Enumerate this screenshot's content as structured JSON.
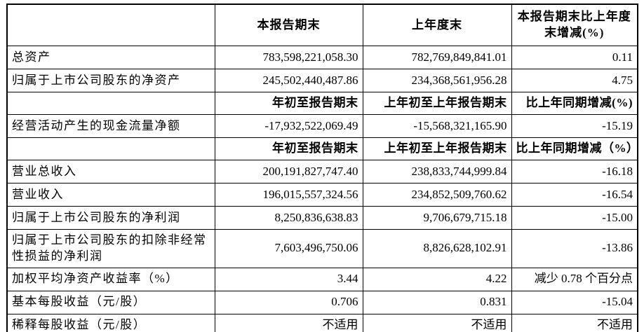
{
  "table": {
    "top_header": {
      "label_col": "",
      "current_period_end": "本报告期末",
      "prior_year_end": "上年度末",
      "change_col_line1": "本报告期末比上年度",
      "change_col_line2": "末增减(%)"
    },
    "rows": [
      {
        "kind": "data",
        "label": "总资产",
        "current": "783,598,221,058.30",
        "prior": "782,769,849,841.01",
        "change": "0.11"
      },
      {
        "kind": "data",
        "label": "归属于上市公司股东的净资产",
        "current": "245,502,440,487.86",
        "prior": "234,368,561,956.28",
        "change": "4.75"
      },
      {
        "kind": "subheader",
        "label": "",
        "current": "年初至报告期末",
        "prior": "上年初至上年报告期末",
        "change": "比上年同期增减(%)"
      },
      {
        "kind": "data",
        "label": "经营活动产生的现金流量净额",
        "current": "-17,932,522,069.49",
        "prior": "-15,568,321,165.90",
        "change": "-15.19"
      },
      {
        "kind": "subheader",
        "label": "",
        "current": "年初至报告期末",
        "prior": "上年初至上年报告期末",
        "change": "比上年同期增减（%）"
      },
      {
        "kind": "data",
        "label": "营业总收入",
        "current": "200,191,827,747.40",
        "prior": "238,833,744,999.84",
        "change": "-16.18"
      },
      {
        "kind": "data",
        "label": "营业收入",
        "current": "196,015,557,324.56",
        "prior": "234,852,509,760.62",
        "change": "-16.54"
      },
      {
        "kind": "data",
        "label": "归属于上市公司股东的净利润",
        "current": "8,250,836,638.83",
        "prior": "9,706,679,715.18",
        "change": "-15.00"
      },
      {
        "kind": "data",
        "label": "归属于上市公司股东的扣除非经常性损益的净利润",
        "current": "7,603,496,750.06",
        "prior": "8,826,628,102.91",
        "change": "-13.86"
      },
      {
        "kind": "data",
        "label": "加权平均净资产收益率（%）",
        "current": "3.44",
        "prior": "4.22",
        "change": "减少 0.78 个百分点"
      },
      {
        "kind": "data",
        "label": "基本每股收益（元/股）",
        "current": "0.706",
        "prior": "0.831",
        "change": "-15.04"
      },
      {
        "kind": "data",
        "label": "稀释每股收益（元/股）",
        "current": "不适用",
        "prior": "不适用",
        "change": "不适用"
      }
    ],
    "colors": {
      "border": "#000000",
      "text": "#000000",
      "background": "#ffffff"
    }
  }
}
